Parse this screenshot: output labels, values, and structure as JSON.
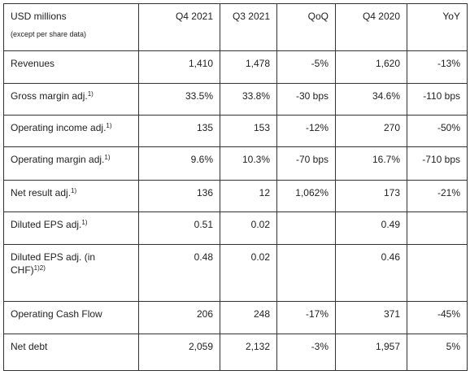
{
  "header": {
    "title": "USD millions",
    "subtitle": "(except per share data)",
    "columns": [
      "Q4 2021",
      "Q3 2021",
      "QoQ",
      "Q4 2020",
      "YoY"
    ]
  },
  "rows": [
    {
      "label": "Revenues",
      "cells": [
        "1,410",
        "1,478",
        "-5%",
        "1,620",
        "-13%"
      ]
    },
    {
      "label": "Gross margin adj.",
      "note": "1)",
      "cells": [
        "33.5%",
        "33.8%",
        "-30 bps",
        "34.6%",
        "-110 bps"
      ]
    },
    {
      "label": "Operating income adj.",
      "note": "1)",
      "cells": [
        "135",
        "153",
        "-12%",
        "270",
        "-50%"
      ]
    },
    {
      "label": "Operating margin adj.",
      "note": "1)",
      "cells": [
        "9.6%",
        "10.3%",
        "-70 bps",
        "16.7%",
        "-710 bps"
      ]
    },
    {
      "label": "Net result adj.",
      "note": "1)",
      "cells": [
        "136",
        "12",
        "1,062%",
        "173",
        "-21%"
      ]
    },
    {
      "label": "Diluted EPS adj.",
      "note": "1)",
      "cells": [
        "0.51",
        "0.02",
        null,
        "0.49",
        null
      ]
    },
    {
      "label": "Diluted EPS adj. (in CHF)",
      "note": "1)2)",
      "cells": [
        "0.48",
        "0.02",
        null,
        "0.46",
        null
      ]
    },
    {
      "label": "Operating Cash Flow",
      "cells": [
        "206",
        "248",
        "-17%",
        "371",
        "-45%"
      ]
    },
    {
      "label": "Net debt",
      "cells": [
        "2,059",
        "2,132",
        "-3%",
        "1,957",
        "5%"
      ]
    }
  ]
}
